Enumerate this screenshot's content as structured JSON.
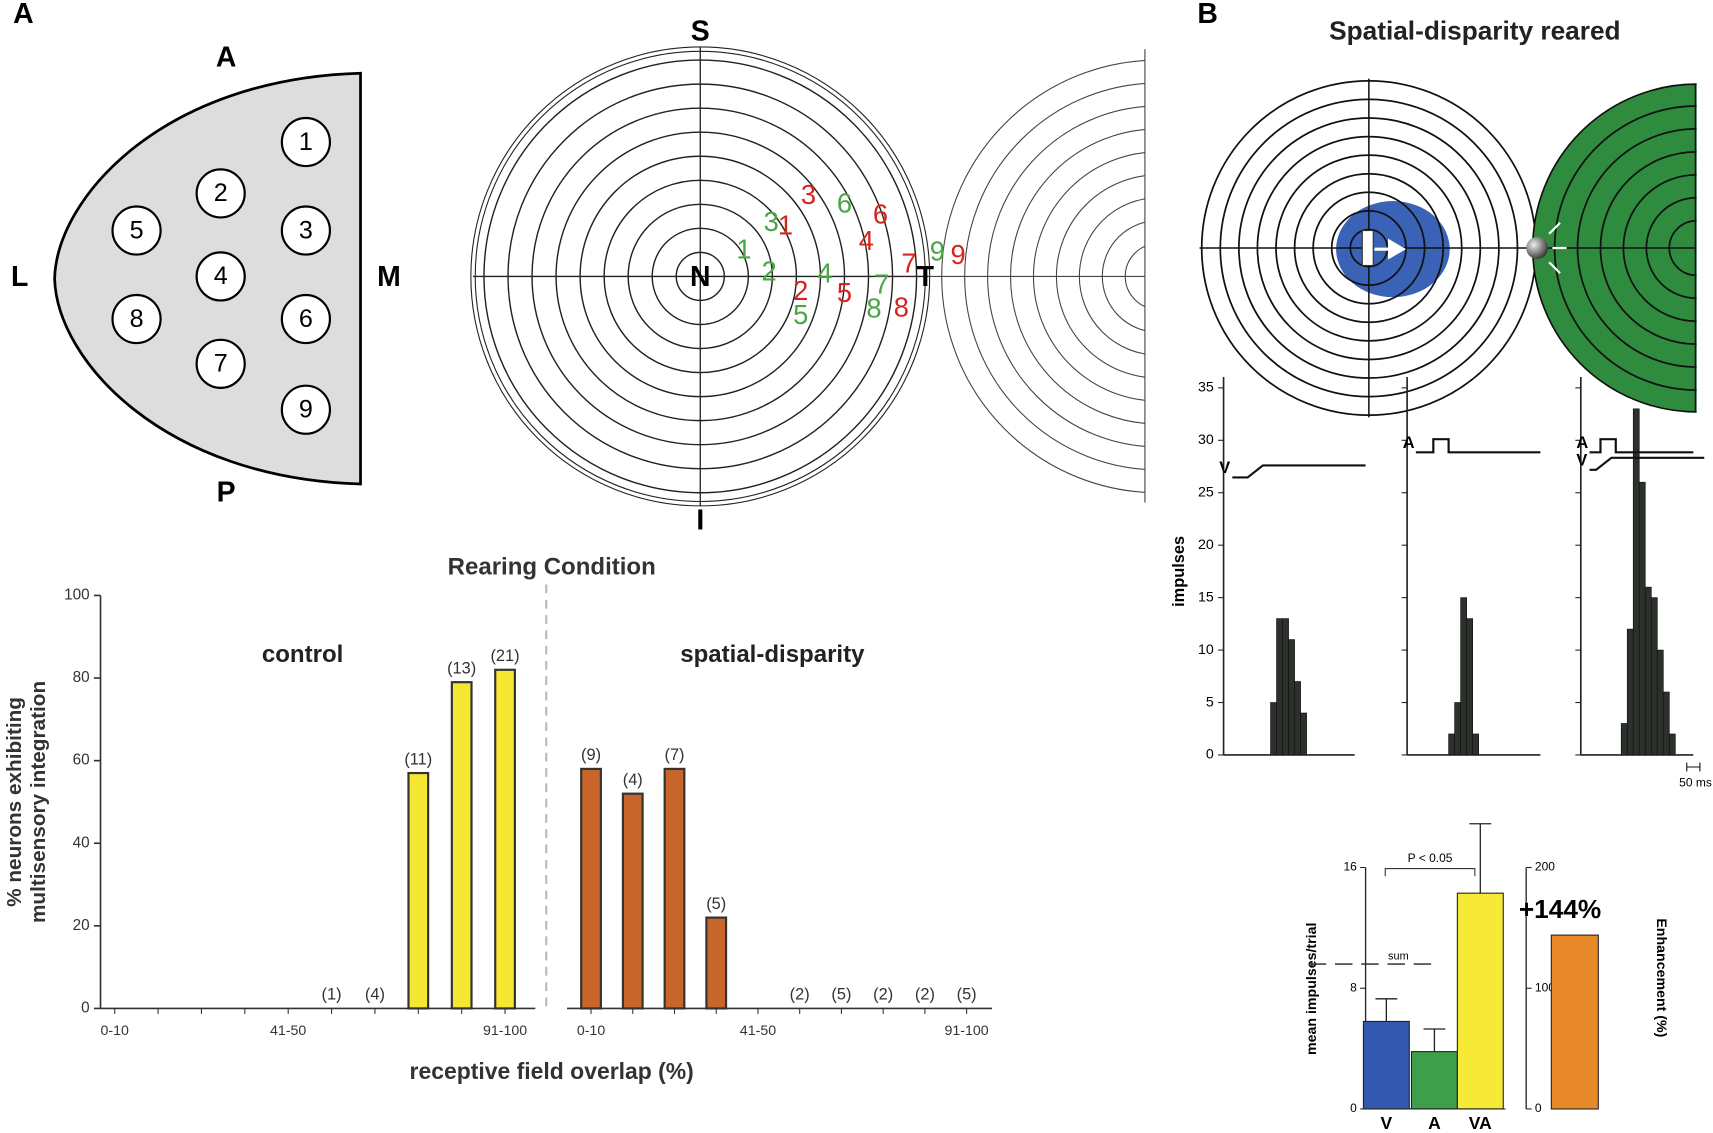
{
  "panel_labels": [
    "A",
    "B"
  ],
  "site_map": {
    "labels": {
      "anterior": "A",
      "posterior": "P",
      "lateral": "L",
      "medial": "M"
    },
    "sites": [
      "1",
      "2",
      "3",
      "4",
      "5",
      "6",
      "7",
      "8",
      "9"
    ]
  },
  "field_map": {
    "labels": {
      "superior": "S",
      "inferior": "I",
      "nasal": "N",
      "temporal": "T"
    },
    "fields": [
      {
        "color": "#4aa547",
        "labels": [
          "1",
          "2",
          "3",
          "4",
          "5",
          "6",
          "7",
          "8",
          "9"
        ]
      },
      {
        "color": "#d4261c",
        "labels": [
          "1",
          "2",
          "3",
          "4",
          "5",
          "6",
          "7",
          "8",
          "9"
        ]
      }
    ]
  },
  "figure_b": {
    "title": "Spatial-disparity reared"
  },
  "chart_data": [
    {
      "type": "grouped-bar",
      "title": "Rearing Condition",
      "ylabel": [
        "% neurons exhibiting",
        "multisensory integration"
      ],
      "xlabel": "receptive field overlap (%)",
      "categories": [
        "0-10",
        null,
        null,
        null,
        "41-50",
        null,
        null,
        null,
        null,
        "91-100"
      ],
      "ylim": [
        0,
        100
      ],
      "yticks": [
        0,
        20,
        40,
        60,
        80,
        100
      ],
      "series": [
        {
          "name": "control",
          "color": "#f6e733",
          "values": [
            null,
            null,
            null,
            null,
            null,
            0,
            0,
            57,
            79,
            82
          ],
          "count_labels": [
            null,
            null,
            null,
            null,
            null,
            "(1)",
            "(4)",
            "(11)",
            "(13)",
            "(21)"
          ]
        },
        {
          "name": "spatial-disparity",
          "color": "#c8652b",
          "values": [
            58,
            52,
            58,
            22,
            null,
            0,
            0,
            0,
            0,
            0
          ],
          "count_labels": [
            "(9)",
            "(4)",
            "(7)",
            "(5)",
            null,
            "(2)",
            "(5)",
            "(2)",
            "(2)",
            "(5)"
          ]
        }
      ]
    },
    {
      "type": "psth",
      "stimuli": [
        "V"
      ],
      "ylabel": "impulses",
      "ylim": [
        0,
        35
      ],
      "yticks": [
        0,
        5,
        10,
        15,
        20,
        25,
        30,
        35
      ],
      "color": "#2c312c",
      "values": [
        5,
        13,
        13,
        11,
        7,
        4
      ]
    },
    {
      "type": "psth",
      "stimuli": [
        "A"
      ],
      "ylim": [
        0,
        35
      ],
      "color": "#2c312c",
      "values": [
        2,
        5,
        15,
        13,
        2
      ]
    },
    {
      "type": "psth",
      "stimuli": [
        "A",
        "V"
      ],
      "ylim": [
        0,
        35
      ],
      "color": "#2c312c",
      "values": [
        3,
        12,
        33,
        26,
        16,
        15,
        10,
        6,
        2
      ],
      "scale_bar": "50 ms"
    },
    {
      "type": "error-bar",
      "categories": [
        "V",
        "A",
        "VA"
      ],
      "values": [
        5.8,
        3.8,
        14.3
      ],
      "errors": [
        1.5,
        1.5,
        4.6
      ],
      "colors": [
        "#3358b0",
        "#3f9e4a",
        "#f7ea36"
      ],
      "ylabel": "mean impulses/trial",
      "ylim": [
        0,
        16
      ],
      "yticks": [
        0,
        8,
        16
      ],
      "annotation": "P < 0.05",
      "sum_label": "sum",
      "sum_value": 9.6,
      "y2label": "Enhancement (%)",
      "y2lim": [
        0,
        200
      ],
      "y2ticks": [
        0,
        100,
        200
      ],
      "enhancement": {
        "value": 144,
        "value_label": "+144%",
        "color": "#e8892a",
        "axis": "y2"
      }
    }
  ]
}
